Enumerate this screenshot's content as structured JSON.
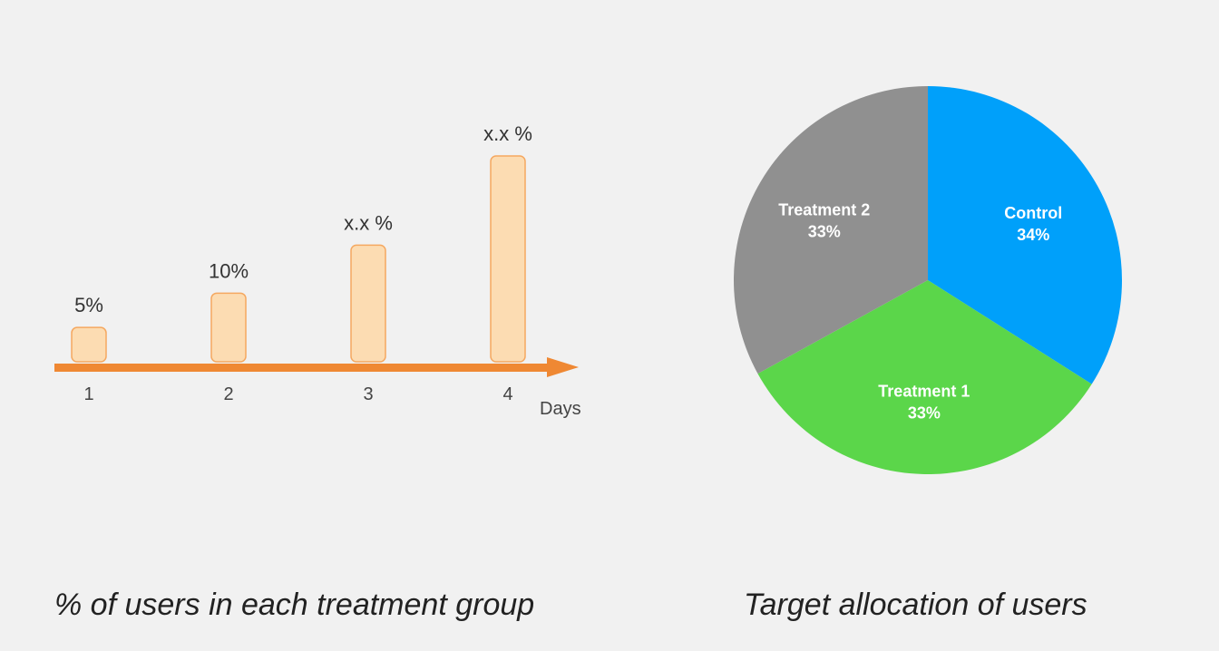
{
  "colors": {
    "background": "#f1f1f1",
    "bar_fill": "#fcdcb2",
    "bar_stroke": "#f5a860",
    "arrow": "#ef8833",
    "control": "#00a0fa",
    "treatment1": "#5bd64a",
    "treatment2": "#909090",
    "pie_text": "#ffffff"
  },
  "chart_data": [
    {
      "type": "bar",
      "categories": [
        "1",
        "2",
        "3",
        "4"
      ],
      "values": [
        5,
        10,
        17,
        30
      ],
      "data_labels": [
        "5%",
        "10%",
        "x.x %",
        "x.x %"
      ],
      "xlabel": "Days",
      "ylabel": "",
      "title": "% of users in each treatment group",
      "ylim": [
        0,
        30
      ],
      "grid": false
    },
    {
      "type": "pie",
      "title": "Target allocation of users",
      "labels": [
        "Control",
        "Treatment 1",
        "Treatment 2"
      ],
      "values": [
        34,
        33,
        33
      ],
      "value_labels": [
        "34%",
        "33%",
        "33%"
      ],
      "colors": [
        "#00a0fa",
        "#5bd64a",
        "#909090"
      ],
      "start": "top, clockwise"
    }
  ]
}
